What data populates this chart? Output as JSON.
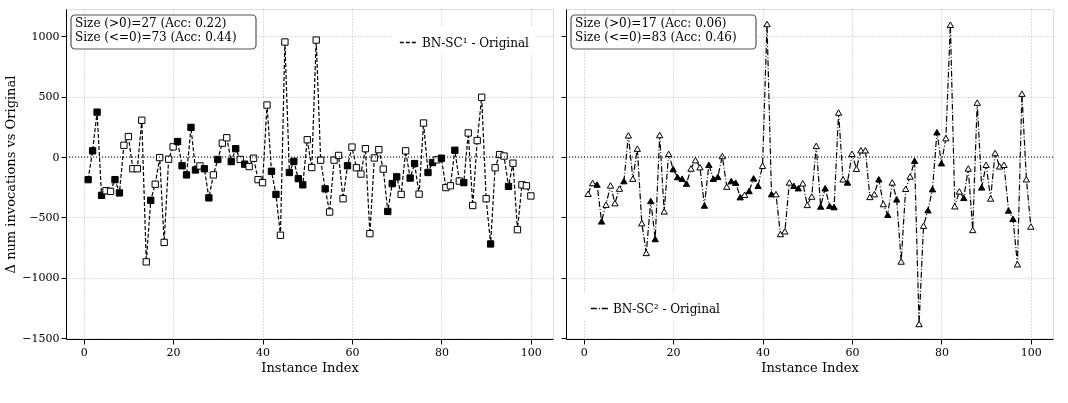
{
  "chart_data": [
    {
      "type": "line",
      "xlabel": "Instance Index",
      "ylabel": "Δ num invocations vs Original",
      "annotations": [
        "Size (>0)=27 (Acc: 0.22)",
        "Size (<=0)=73 (Acc: 0.44)"
      ],
      "x": [
        1,
        2,
        3,
        4,
        5,
        6,
        7,
        8,
        9,
        10,
        11,
        12,
        13,
        14,
        15,
        16,
        17,
        18,
        19,
        20,
        21,
        22,
        23,
        24,
        25,
        26,
        27,
        28,
        29,
        30,
        31,
        32,
        33,
        34,
        35,
        36,
        37,
        38,
        39,
        40,
        41,
        42,
        43,
        44,
        45,
        46,
        47,
        48,
        49,
        50,
        51,
        52,
        53,
        54,
        55,
        56,
        57,
        58,
        59,
        60,
        61,
        62,
        63,
        64,
        65,
        66,
        67,
        68,
        69,
        70,
        71,
        72,
        73,
        74,
        75,
        76,
        77,
        78,
        79,
        80,
        81,
        82,
        83,
        84,
        85,
        86,
        87,
        88,
        89,
        90,
        91,
        92,
        93,
        94,
        95,
        96,
        97,
        98,
        99,
        100
      ],
      "series": [
        {
          "name": "BN-SC¹ - Original",
          "color": "#000000",
          "line_style": "dashed",
          "marker": "square",
          "values": [
            -187,
            51,
            371,
            -317,
            -279,
            -284,
            -187,
            -297,
            97,
            169,
            -97,
            -97,
            304,
            -867,
            -358,
            -225,
            -5,
            -706,
            -18,
            84,
            128,
            -72,
            -148,
            245,
            -107,
            -74,
            -97,
            -338,
            -148,
            -20,
            115,
            159,
            -38,
            69,
            -20,
            -59,
            -79,
            -10,
            -187,
            -212,
            430,
            -118,
            -309,
            -647,
            951,
            -128,
            -36,
            -179,
            -230,
            143,
            -87,
            967,
            -26,
            -263,
            -455,
            -26,
            13,
            -345,
            -72,
            82,
            -89,
            -141,
            69,
            -634,
            -8,
            61,
            -100,
            -450,
            -220,
            -164,
            -309,
            51,
            -174,
            -54,
            -307,
            281,
            -128,
            -46,
            -23,
            -10,
            -253,
            -238,
            56,
            -199,
            -212,
            199,
            -401,
            136,
            494,
            -345,
            -719,
            -89,
            20,
            8,
            -243,
            -51,
            -601,
            -230,
            -238,
            -322
          ],
          "colors": [
            "#000000",
            "#000000",
            "#000000",
            "#000000",
            "#ffffff",
            "#ffffff",
            "#000000",
            "#000000",
            "#ffffff",
            "#ffffff",
            "#ffffff",
            "#ffffff",
            "#ffffff",
            "#ffffff",
            "#000000",
            "#ffffff",
            "#ffffff",
            "#ffffff",
            "#ffffff",
            "#ffffff",
            "#000000",
            "#000000",
            "#000000",
            "#000000",
            "#000000",
            "#ffffff",
            "#000000",
            "#000000",
            "#ffffff",
            "#000000",
            "#ffffff",
            "#ffffff",
            "#000000",
            "#000000",
            "#ffffff",
            "#000000",
            "#ffffff",
            "#ffffff",
            "#ffffff",
            "#ffffff",
            "#ffffff",
            "#000000",
            "#000000",
            "#ffffff",
            "#ffffff",
            "#000000",
            "#000000",
            "#000000",
            "#000000",
            "#ffffff",
            "#ffffff",
            "#ffffff",
            "#ffffff",
            "#000000",
            "#ffffff",
            "#ffffff",
            "#ffffff",
            "#ffffff",
            "#000000",
            "#ffffff",
            "#ffffff",
            "#ffffff",
            "#ffffff",
            "#ffffff",
            "#ffffff",
            "#ffffff",
            "#ffffff",
            "#000000",
            "#000000",
            "#000000",
            "#ffffff",
            "#ffffff",
            "#000000",
            "#000000",
            "#ffffff",
            "#ffffff",
            "#000000",
            "#000000",
            "#ffffff",
            "#000000",
            "#ffffff",
            "#ffffff",
            "#000000",
            "#ffffff",
            "#000000",
            "#ffffff",
            "#ffffff",
            "#ffffff",
            "#ffffff",
            "#ffffff",
            "#000000",
            "#ffffff",
            "#ffffff",
            "#ffffff",
            "#000000",
            "#ffffff",
            "#ffffff",
            "#ffffff",
            "#ffffff",
            "#ffffff"
          ]
        }
      ],
      "xlim": [
        -3.95,
        104.95
      ],
      "ylim": [
        -1505,
        1224
      ],
      "xticks": [
        0,
        20,
        40,
        60,
        80,
        100
      ],
      "yticks": [
        -1500,
        -1000,
        -500,
        0,
        500,
        1000
      ],
      "ref_lines": [
        {
          "axis": "y",
          "value": 0,
          "color": "#000000",
          "line_style": "dotted"
        }
      ],
      "grid": true,
      "legend": "top right"
    },
    {
      "type": "line",
      "xlabel": "Instance Index",
      "annotations": [
        "Size (>0)=17 (Acc: 0.06)",
        "Size (<=0)=83 (Acc: 0.46)"
      ],
      "x": [
        1,
        2,
        3,
        4,
        5,
        6,
        7,
        8,
        9,
        10,
        11,
        12,
        13,
        14,
        15,
        16,
        17,
        18,
        19,
        20,
        21,
        22,
        23,
        24,
        25,
        26,
        27,
        28,
        29,
        30,
        31,
        32,
        33,
        34,
        35,
        36,
        37,
        38,
        39,
        40,
        41,
        42,
        43,
        44,
        45,
        46,
        47,
        48,
        49,
        50,
        51,
        52,
        53,
        54,
        55,
        56,
        57,
        58,
        59,
        60,
        61,
        62,
        63,
        64,
        65,
        66,
        67,
        68,
        69,
        70,
        71,
        72,
        73,
        74,
        75,
        76,
        77,
        78,
        79,
        80,
        81,
        82,
        83,
        84,
        85,
        86,
        87,
        88,
        89,
        90,
        91,
        92,
        93,
        94,
        95,
        96,
        97,
        98,
        99,
        100
      ],
      "series": [
        {
          "name": "BN-SC² - Original",
          "color": "#000000",
          "line_style": "dashdot",
          "marker": "triangle",
          "values": [
            -304,
            -215,
            -228,
            -532,
            -394,
            -235,
            -381,
            -261,
            -199,
            179,
            -179,
            69,
            -547,
            -793,
            -363,
            -678,
            182,
            -450,
            26,
            -100,
            -166,
            -179,
            -220,
            -95,
            -26,
            -84,
            -401,
            -64,
            -179,
            -164,
            8,
            -245,
            -199,
            -212,
            -332,
            -312,
            -281,
            -176,
            -238,
            -72,
            1100,
            -307,
            -307,
            -637,
            -614,
            -210,
            -238,
            -258,
            -217,
            -396,
            -327,
            92,
            -409,
            -258,
            -404,
            -414,
            368,
            -184,
            -210,
            26,
            -97,
            56,
            56,
            -330,
            -307,
            -184,
            -389,
            -478,
            -210,
            -350,
            -864,
            -263,
            -161,
            -31,
            -1381,
            -568,
            -440,
            -266,
            205,
            -51,
            156,
            1094,
            -407,
            -284,
            -338,
            -95,
            -603,
            450,
            -251,
            -64,
            -343,
            33,
            -77,
            -64,
            -442,
            -511,
            -887,
            524,
            -184,
            -575
          ],
          "colors": [
            "#ffffff",
            "#ffffff",
            "#000000",
            "#000000",
            "#ffffff",
            "#ffffff",
            "#ffffff",
            "#ffffff",
            "#000000",
            "#ffffff",
            "#ffffff",
            "#ffffff",
            "#ffffff",
            "#ffffff",
            "#000000",
            "#000000",
            "#ffffff",
            "#ffffff",
            "#ffffff",
            "#000000",
            "#000000",
            "#000000",
            "#000000",
            "#ffffff",
            "#ffffff",
            "#ffffff",
            "#000000",
            "#000000",
            "#000000",
            "#000000",
            "#ffffff",
            "#ffffff",
            "#000000",
            "#000000",
            "#000000",
            "#ffffff",
            "#000000",
            "#000000",
            "#000000",
            "#ffffff",
            "#ffffff",
            "#000000",
            "#ffffff",
            "#ffffff",
            "#ffffff",
            "#ffffff",
            "#000000",
            "#000000",
            "#ffffff",
            "#ffffff",
            "#ffffff",
            "#ffffff",
            "#000000",
            "#000000",
            "#000000",
            "#000000",
            "#ffffff",
            "#ffffff",
            "#000000",
            "#ffffff",
            "#ffffff",
            "#ffffff",
            "#ffffff",
            "#ffffff",
            "#ffffff",
            "#000000",
            "#ffffff",
            "#000000",
            "#ffffff",
            "#000000",
            "#ffffff",
            "#ffffff",
            "#ffffff",
            "#000000",
            "#ffffff",
            "#ffffff",
            "#000000",
            "#000000",
            "#000000",
            "#000000",
            "#ffffff",
            "#ffffff",
            "#ffffff",
            "#ffffff",
            "#000000",
            "#ffffff",
            "#ffffff",
            "#ffffff",
            "#000000",
            "#ffffff",
            "#ffffff",
            "#ffffff",
            "#ffffff",
            "#ffffff",
            "#000000",
            "#000000",
            "#ffffff",
            "#ffffff",
            "#ffffff",
            "#ffffff"
          ]
        }
      ],
      "xlim": [
        -3.95,
        104.95
      ],
      "ylim": [
        -1505,
        1224
      ],
      "xticks": [
        0,
        20,
        40,
        60,
        80,
        100
      ],
      "yticks": [
        -1500,
        -1000,
        -500,
        0,
        500,
        1000
      ],
      "ref_lines": [
        {
          "axis": "y",
          "value": 0,
          "color": "#000000",
          "line_style": "dotted"
        }
      ],
      "grid": true,
      "legend": "bottom left",
      "tick_labels": "x"
    }
  ]
}
